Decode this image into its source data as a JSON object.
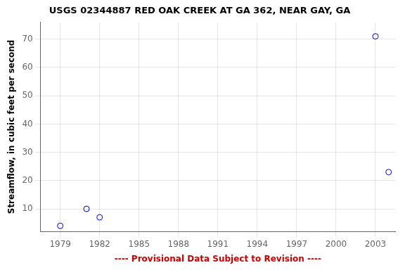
{
  "chart_data": {
    "type": "scatter",
    "title": "USGS 02344887 RED OAK CREEK AT GA 362, NEAR GAY, GA",
    "xlabel": "---- Provisional Data Subject to Revision ----",
    "ylabel": "Streamflow, in cubic feet per second",
    "x": [
      1979,
      1981,
      1982,
      2003,
      2004
    ],
    "values": [
      4,
      10,
      7,
      71,
      23
    ],
    "color": "#0000cc",
    "xlim": [
      1977.5,
      2004.5
    ],
    "ylim": [
      2,
      76
    ],
    "xticks": [
      1979,
      1982,
      1985,
      1988,
      1991,
      1994,
      1997,
      2000,
      2003
    ],
    "yticks": [
      10,
      20,
      30,
      40,
      50,
      60,
      70
    ],
    "grid": true
  }
}
